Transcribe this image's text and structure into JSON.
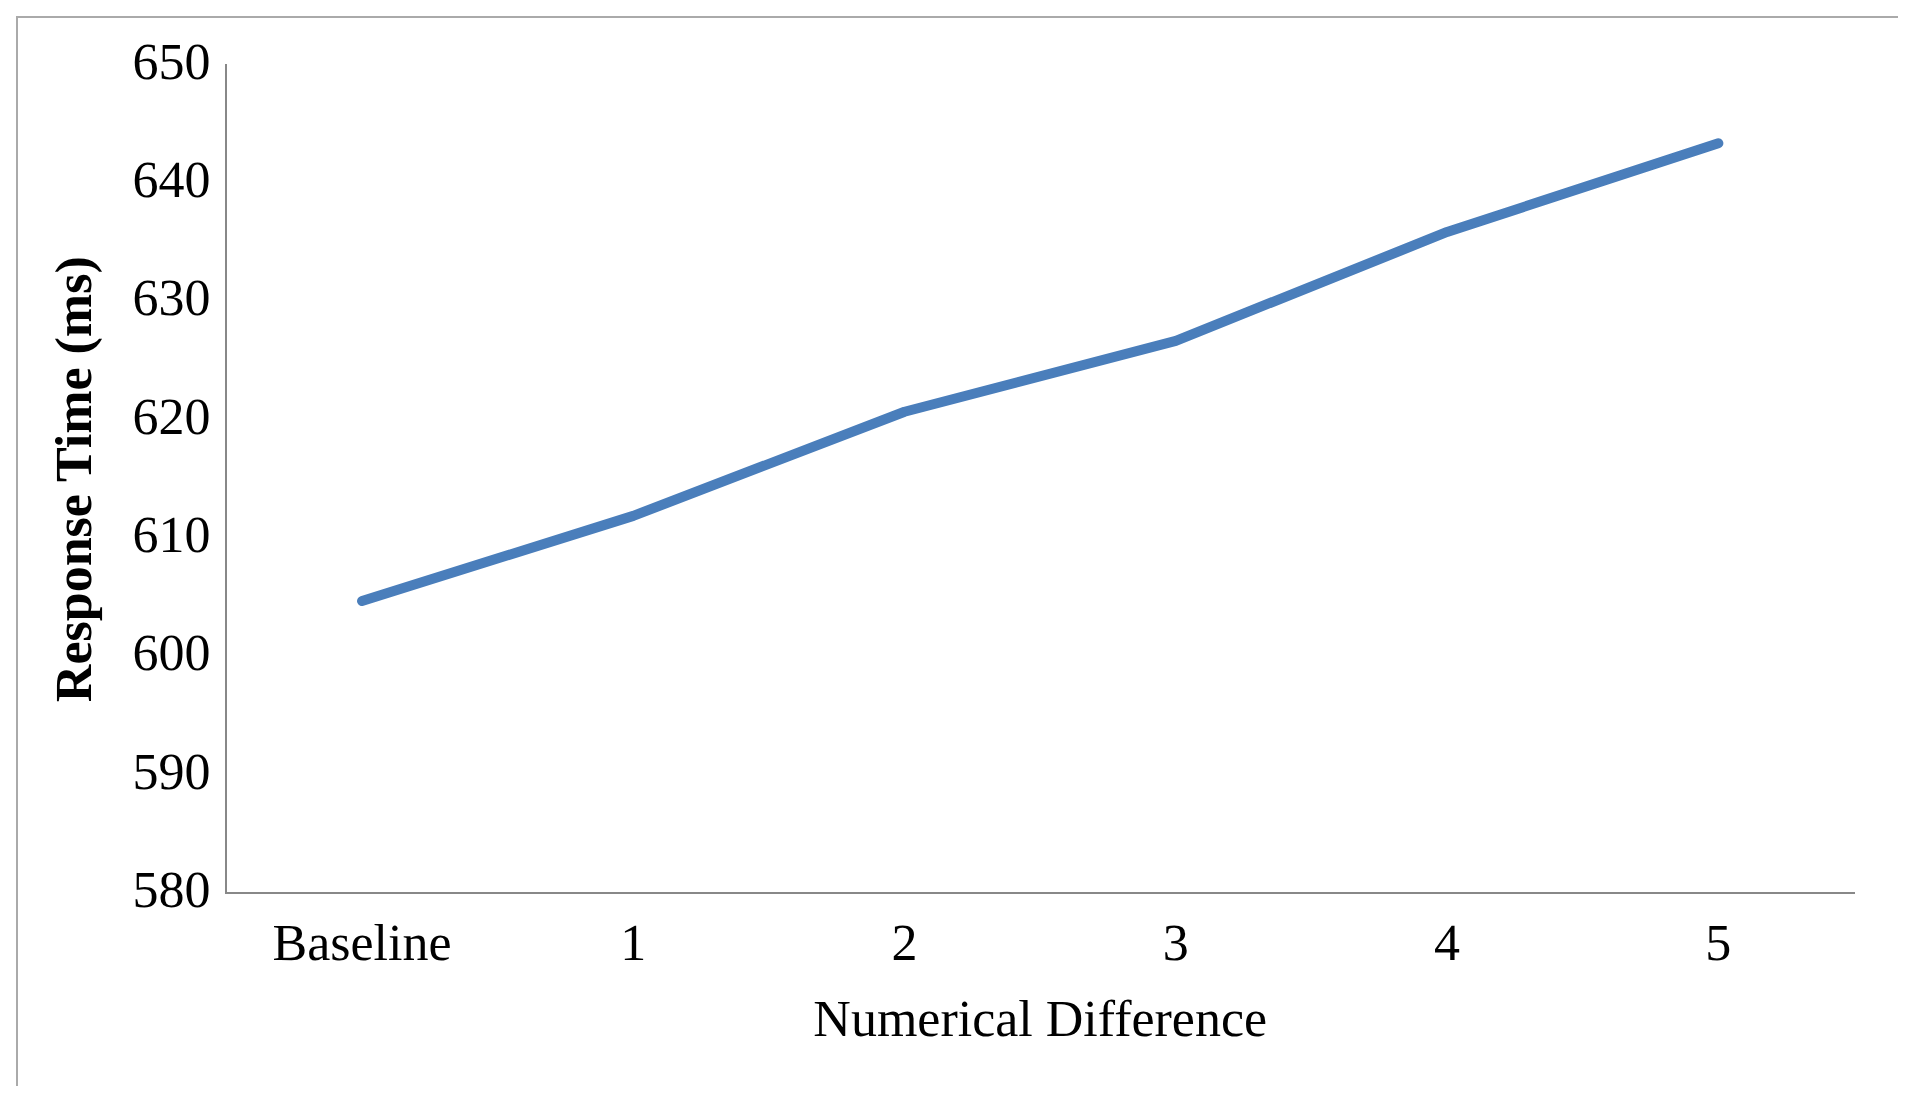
{
  "chart_data": {
    "type": "line",
    "xlabel": "Numerical Difference",
    "ylabel": "Response Time (ms)",
    "categories": [
      "Baseline",
      "1",
      "2",
      "3",
      "4",
      "5"
    ],
    "series": [
      {
        "color": "#4a7ebb",
        "values": [
          604.7,
          611.9,
          620.7,
          626.7,
          635.9,
          643.4
        ]
      }
    ],
    "ylim": [
      580,
      650
    ],
    "yticks": [
      580,
      590,
      600,
      610,
      620,
      630,
      640,
      650
    ],
    "grid": false,
    "legend": false,
    "marker": "none",
    "line_style": "solid"
  }
}
